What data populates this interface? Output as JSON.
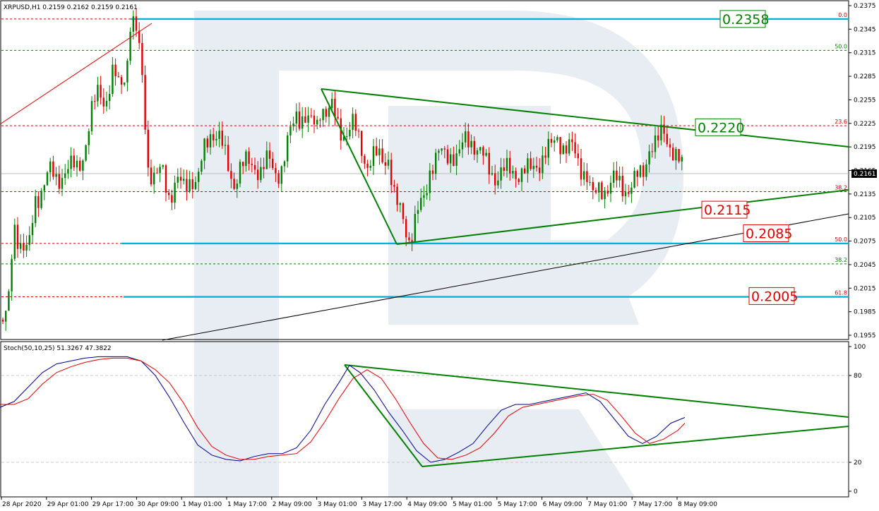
{
  "header": {
    "main_title": "XRPUSD,H1  0.2159 0.2162 0.2159 0.2161",
    "stoch_title": "Stoch(50,10,25) 51.3267 47.3822"
  },
  "price_axis": {
    "ticks": [
      "0.2375",
      "0.2345",
      "0.2315",
      "0.2285",
      "0.2255",
      "0.2225",
      "0.2195",
      "0.2165",
      "0.2135",
      "0.2105",
      "0.2075",
      "0.2045",
      "0.2015",
      "0.1985",
      "0.1955"
    ],
    "ylim": [
      0.1945,
      0.238
    ],
    "current_price": "0.2161"
  },
  "stoch_axis": {
    "ticks": [
      "100",
      "80",
      "20",
      "0"
    ],
    "ylim": [
      0,
      100
    ],
    "levels": [
      80,
      20
    ]
  },
  "time_axis": {
    "labels": [
      "28 Apr 2020",
      "29 Apr 01:00",
      "29 Apr 17:00",
      "30 Apr 09:00",
      "1 May 01:00",
      "1 May 17:00",
      "2 May 09:00",
      "3 May 01:00",
      "3 May 17:00",
      "4 May 09:00",
      "5 May 01:00",
      "5 May 17:00",
      "6 May 09:00",
      "7 May 01:00",
      "7 May 17:00",
      "8 May 09:00"
    ]
  },
  "fib_levels": [
    {
      "label": "0.0",
      "value": 0.2358,
      "color": "#cc0000"
    },
    {
      "label": "50.0",
      "value": 0.2318,
      "color": "#008000"
    },
    {
      "label": "23.6",
      "value": 0.2222,
      "color": "#cc0000"
    },
    {
      "label": "38.2",
      "value": 0.2138,
      "color": "#cc0000"
    },
    {
      "label": "50.0",
      "value": 0.2072,
      "color": "#cc0000"
    },
    {
      "label": "38.2",
      "value": 0.2046,
      "color": "#008000"
    },
    {
      "label": "61.8",
      "value": 0.2004,
      "color": "#cc0000"
    }
  ],
  "level_labels": [
    {
      "text": "0.2358",
      "value": 0.2358,
      "color": "#008000"
    },
    {
      "text": "0.2220",
      "value": 0.222,
      "color": "#008000"
    },
    {
      "text": "0.2115",
      "value": 0.2115,
      "color": "#e00000"
    },
    {
      "text": "0.2085",
      "value": 0.2085,
      "color": "#e00000"
    },
    {
      "text": "0.2005",
      "value": 0.2005,
      "color": "#e00000"
    }
  ],
  "colors": {
    "bull": "#008000",
    "bear": "#e00000",
    "trend_green": "#008000",
    "cyan_level": "#00b4d8",
    "stoch_main": "#00008b",
    "stoch_signal": "#e00000",
    "grid": "#c8c8c8",
    "watermark": "#e4e9f1"
  },
  "chart_data": [
    {
      "type": "candlestick",
      "title": "XRPUSD,H1",
      "ylim": [
        0.1945,
        0.238
      ],
      "key_prices": {
        "open": 0.2159,
        "high": 0.2162,
        "low": 0.2159,
        "close": 0.2161,
        "resistance_high": 0.2358,
        "triangle_upper": 0.222,
        "triangle_lower": 0.2115,
        "support_1": 0.2085,
        "support_2": 0.2005
      },
      "path_points": [
        [
          0,
          0.1975
        ],
        [
          10,
          0.197
        ],
        [
          20,
          0.21
        ],
        [
          30,
          0.207
        ],
        [
          40,
          0.2055
        ],
        [
          50,
          0.213
        ],
        [
          60,
          0.2145
        ],
        [
          70,
          0.216
        ],
        [
          80,
          0.2155
        ],
        [
          90,
          0.2165
        ],
        [
          100,
          0.2165
        ],
        [
          110,
          0.217
        ],
        [
          120,
          0.2195
        ],
        [
          130,
          0.2235
        ],
        [
          140,
          0.227
        ],
        [
          150,
          0.2255
        ],
        [
          160,
          0.2285
        ],
        [
          170,
          0.227
        ],
        [
          180,
          0.2305
        ],
        [
          185,
          0.2358
        ],
        [
          190,
          0.2345
        ],
        [
          195,
          0.233
        ],
        [
          200,
          0.23
        ],
        [
          205,
          0.224
        ],
        [
          210,
          0.217
        ],
        [
          220,
          0.215
        ],
        [
          230,
          0.2165
        ],
        [
          240,
          0.2135
        ],
        [
          250,
          0.215
        ],
        [
          260,
          0.214
        ],
        [
          270,
          0.216
        ],
        [
          280,
          0.215
        ],
        [
          290,
          0.219
        ],
        [
          300,
          0.222
        ],
        [
          310,
          0.221
        ],
        [
          320,
          0.2175
        ],
        [
          330,
          0.215
        ],
        [
          340,
          0.217
        ],
        [
          350,
          0.217
        ],
        [
          360,
          0.2175
        ],
        [
          370,
          0.2165
        ],
        [
          380,
          0.2175
        ],
        [
          390,
          0.2165
        ],
        [
          400,
          0.217
        ],
        [
          410,
          0.2205
        ],
        [
          420,
          0.224
        ],
        [
          430,
          0.2235
        ],
        [
          440,
          0.222
        ],
        [
          450,
          0.2225
        ],
        [
          455,
          0.2258
        ],
        [
          460,
          0.224
        ],
        [
          470,
          0.224
        ],
        [
          480,
          0.222
        ],
        [
          490,
          0.2215
        ],
        [
          500,
          0.222
        ],
        [
          510,
          0.22
        ],
        [
          520,
          0.2175
        ],
        [
          530,
          0.218
        ],
        [
          540,
          0.218
        ],
        [
          550,
          0.2185
        ],
        [
          560,
          0.212
        ],
        [
          570,
          0.2105
        ],
        [
          580,
          0.208
        ],
        [
          590,
          0.2105
        ],
        [
          600,
          0.2125
        ],
        [
          610,
          0.2175
        ],
        [
          620,
          0.2185
        ],
        [
          630,
          0.218
        ],
        [
          640,
          0.219
        ],
        [
          650,
          0.2185
        ],
        [
          660,
          0.22
        ],
        [
          670,
          0.2205
        ],
        [
          680,
          0.219
        ],
        [
          690,
          0.2165
        ],
        [
          700,
          0.216
        ],
        [
          710,
          0.2165
        ],
        [
          720,
          0.216
        ],
        [
          730,
          0.2165
        ],
        [
          740,
          0.2165
        ],
        [
          750,
          0.216
        ],
        [
          760,
          0.2175
        ],
        [
          770,
          0.2185
        ],
        [
          780,
          0.219
        ],
        [
          790,
          0.221
        ],
        [
          800,
          0.2195
        ],
        [
          810,
          0.219
        ],
        [
          820,
          0.2175
        ],
        [
          830,
          0.2165
        ],
        [
          840,
          0.2125
        ],
        [
          850,
          0.2145
        ],
        [
          860,
          0.2145
        ],
        [
          870,
          0.215
        ],
        [
          880,
          0.2145
        ],
        [
          890,
          0.2145
        ],
        [
          900,
          0.215
        ],
        [
          910,
          0.216
        ],
        [
          920,
          0.22
        ],
        [
          930,
          0.2195
        ],
        [
          940,
          0.2215
        ],
        [
          950,
          0.22
        ],
        [
          960,
          0.2175
        ],
        [
          970,
          0.2161
        ]
      ]
    },
    {
      "type": "line",
      "title": "Stoch(50,10,25)",
      "ylim": [
        0,
        100
      ],
      "series": [
        {
          "name": "51.3267",
          "color": "#00008b",
          "points": [
            [
              0,
              58
            ],
            [
              20,
              62
            ],
            [
              40,
              72
            ],
            [
              60,
              82
            ],
            [
              80,
              88
            ],
            [
              100,
              90
            ],
            [
              120,
              92
            ],
            [
              140,
              93
            ],
            [
              160,
              93
            ],
            [
              180,
              93
            ],
            [
              200,
              90
            ],
            [
              220,
              80
            ],
            [
              240,
              65
            ],
            [
              260,
              48
            ],
            [
              280,
              32
            ],
            [
              300,
              25
            ],
            [
              320,
              22
            ],
            [
              340,
              21
            ],
            [
              360,
              24
            ],
            [
              380,
              26
            ],
            [
              400,
              26
            ],
            [
              420,
              30
            ],
            [
              440,
              42
            ],
            [
              460,
              60
            ],
            [
              480,
              75
            ],
            [
              495,
              87
            ],
            [
              510,
              82
            ],
            [
              530,
              70
            ],
            [
              550,
              55
            ],
            [
              570,
              42
            ],
            [
              590,
              28
            ],
            [
              610,
              20
            ],
            [
              630,
              22
            ],
            [
              650,
              27
            ],
            [
              670,
              33
            ],
            [
              690,
              45
            ],
            [
              710,
              56
            ],
            [
              730,
              60
            ],
            [
              750,
              60
            ],
            [
              770,
              62
            ],
            [
              790,
              64
            ],
            [
              810,
              66
            ],
            [
              830,
              68
            ],
            [
              850,
              62
            ],
            [
              870,
              50
            ],
            [
              890,
              38
            ],
            [
              910,
              33
            ],
            [
              930,
              38
            ],
            [
              950,
              47
            ],
            [
              970,
              51
            ]
          ]
        },
        {
          "name": "47.3822",
          "color": "#e00000",
          "points": [
            [
              0,
              60
            ],
            [
              20,
              60
            ],
            [
              40,
              64
            ],
            [
              60,
              74
            ],
            [
              80,
              82
            ],
            [
              100,
              86
            ],
            [
              120,
              89
            ],
            [
              140,
              91
            ],
            [
              160,
              92
            ],
            [
              180,
              92
            ],
            [
              200,
              90
            ],
            [
              220,
              84
            ],
            [
              240,
              75
            ],
            [
              260,
              61
            ],
            [
              280,
              44
            ],
            [
              300,
              31
            ],
            [
              320,
              25
            ],
            [
              340,
              22
            ],
            [
              360,
              22
            ],
            [
              380,
              24
            ],
            [
              400,
              25
            ],
            [
              420,
              26
            ],
            [
              440,
              34
            ],
            [
              460,
              48
            ],
            [
              480,
              64
            ],
            [
              500,
              78
            ],
            [
              520,
              84
            ],
            [
              540,
              78
            ],
            [
              560,
              64
            ],
            [
              580,
              48
            ],
            [
              600,
              33
            ],
            [
              620,
              23
            ],
            [
              640,
              22
            ],
            [
              660,
              25
            ],
            [
              680,
              30
            ],
            [
              700,
              40
            ],
            [
              720,
              52
            ],
            [
              740,
              58
            ],
            [
              760,
              60
            ],
            [
              780,
              62
            ],
            [
              800,
              64
            ],
            [
              820,
              66
            ],
            [
              840,
              67
            ],
            [
              860,
              63
            ],
            [
              880,
              52
            ],
            [
              900,
              40
            ],
            [
              920,
              33
            ],
            [
              940,
              36
            ],
            [
              960,
              42
            ],
            [
              970,
              47
            ]
          ]
        }
      ]
    }
  ]
}
